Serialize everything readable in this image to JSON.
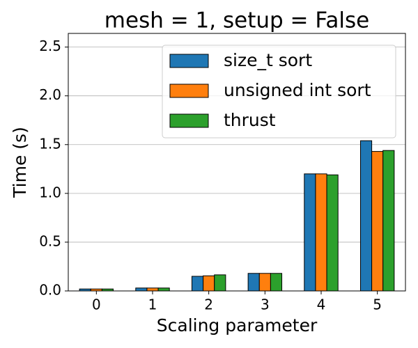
{
  "chart_data": {
    "type": "bar",
    "title": "mesh = 1, setup = False",
    "x_label": "Scaling parameter",
    "y_label": "Time (s)",
    "categories": [
      "0",
      "1",
      "2",
      "3",
      "4",
      "5"
    ],
    "series": [
      {
        "name": "size_t sort",
        "color": "#1f77b4",
        "values": [
          0.02,
          0.03,
          0.15,
          0.18,
          1.2,
          1.54
        ]
      },
      {
        "name": "unsigned int sort",
        "color": "#ff7f0e",
        "values": [
          0.02,
          0.03,
          0.155,
          0.18,
          1.2,
          1.43
        ]
      },
      {
        "name": "thrust",
        "color": "#2ca02c",
        "values": [
          0.02,
          0.03,
          0.165,
          0.18,
          1.19,
          1.44
        ]
      }
    ],
    "ylim": [
      0,
      2.64
    ],
    "yticks": [
      {
        "value": 0,
        "label": "0.0"
      },
      0.5,
      {
        "value": 1,
        "label": "1.0"
      },
      1.5,
      {
        "value": 2,
        "label": "2.0"
      },
      2.5
    ],
    "grid": true,
    "legend": "upper right"
  }
}
